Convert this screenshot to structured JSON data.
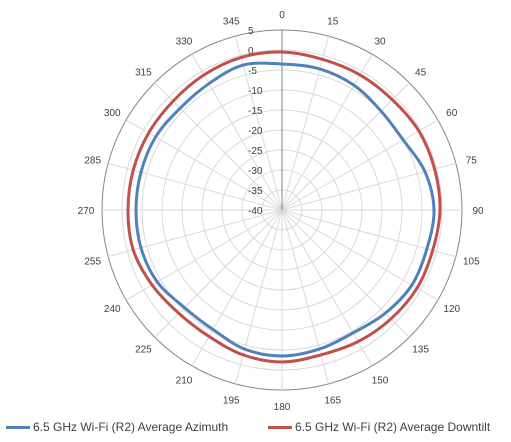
{
  "chart_data": {
    "type": "radar",
    "angle_labels": [
      "0",
      "15",
      "30",
      "45",
      "60",
      "75",
      "90",
      "105",
      "120",
      "135",
      "150",
      "165",
      "180",
      "195",
      "210",
      "225",
      "240",
      "255",
      "270",
      "285",
      "300",
      "315",
      "330",
      "345"
    ],
    "radial_labels": [
      "5",
      "0",
      "-5",
      "-10",
      "-15",
      "-20",
      "-25",
      "-30",
      "-35",
      "-40"
    ],
    "rlim": [
      -40,
      5
    ],
    "grid": true,
    "legend_position": "bottom",
    "series": [
      {
        "name": "6.5 GHz Wi-Fi (R2) Average Azimuth",
        "color": "#4F81BD",
        "angles": [
          0,
          15,
          30,
          45,
          60,
          75,
          90,
          105,
          120,
          135,
          150,
          165,
          180,
          195,
          210,
          225,
          240,
          255,
          270,
          285,
          300,
          315,
          330,
          345
        ],
        "values": [
          -3.5,
          -3.5,
          -4,
          -5,
          -5,
          -3,
          -2,
          -2.5,
          -2.5,
          -3.5,
          -4.5,
          -4,
          -3.5,
          -4,
          -5.5,
          -5.5,
          -4,
          -3.5,
          -3.5,
          -3.5,
          -3.5,
          -4,
          -3.5,
          -2.5
        ]
      },
      {
        "name": "6.5 GHz Wi-Fi (R2) Average Downtilt",
        "color": "#C0504D",
        "angles": [
          0,
          15,
          30,
          45,
          60,
          75,
          90,
          105,
          120,
          135,
          150,
          165,
          180,
          195,
          210,
          225,
          240,
          255,
          270,
          285,
          300,
          315,
          330,
          345
        ],
        "values": [
          -0.5,
          -1,
          -1,
          -1,
          -0.5,
          -0.5,
          -0.5,
          -1,
          -1,
          -1.5,
          -2,
          -2.5,
          -2,
          -2.5,
          -3.5,
          -3.5,
          -2.5,
          -1.5,
          -1.5,
          -1.5,
          -1.5,
          -1.5,
          -1,
          -0.5
        ]
      }
    ]
  }
}
